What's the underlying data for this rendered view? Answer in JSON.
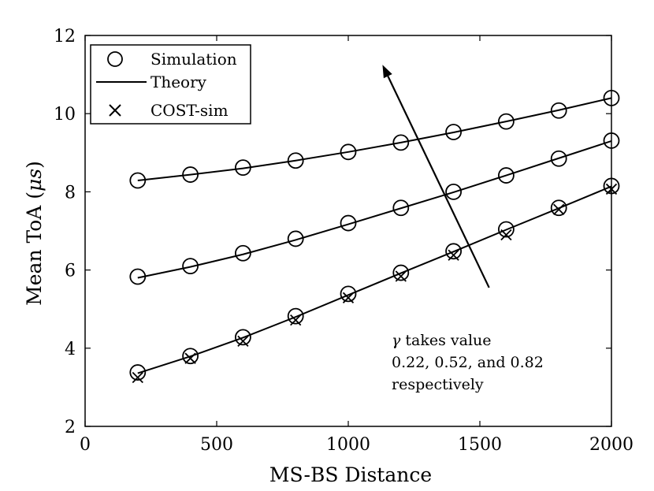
{
  "chart_data": {
    "type": "line",
    "xlabel": "MS-BS Distance",
    "ylabel": "Mean ToA (",
    "ylabel_unit": "μs",
    "ylabel_close": ")",
    "xlim": [
      0,
      2000
    ],
    "ylim": [
      2,
      12
    ],
    "xticks": [
      0,
      500,
      1000,
      1500,
      2000
    ],
    "yticks": [
      2,
      4,
      6,
      8,
      10,
      12
    ],
    "grid": false,
    "legend_position": "top-left",
    "legend": {
      "simulation": "Simulation",
      "theory": "Theory",
      "cost": "COST-sim"
    },
    "x": [
      200,
      400,
      600,
      800,
      1000,
      1200,
      1400,
      1600,
      1800,
      2000
    ],
    "series": [
      {
        "name": "γ = 0.82",
        "theory": [
          8.29,
          8.44,
          8.6,
          8.8,
          9.02,
          9.26,
          9.52,
          9.8,
          10.09,
          10.4
        ],
        "simulation": [
          8.29,
          8.44,
          8.62,
          8.8,
          9.02,
          9.26,
          9.53,
          9.8,
          10.08,
          10.4
        ],
        "cost_sim": []
      },
      {
        "name": "γ = 0.52",
        "theory": [
          5.8,
          6.08,
          6.4,
          6.77,
          7.17,
          7.58,
          7.99,
          8.42,
          8.86,
          9.3
        ],
        "simulation": [
          5.83,
          6.1,
          6.43,
          6.8,
          7.2,
          7.59,
          8.0,
          8.42,
          8.85,
          9.31
        ],
        "cost_sim": []
      },
      {
        "name": "γ = 0.22",
        "theory": [
          3.36,
          3.79,
          4.27,
          4.8,
          5.36,
          5.92,
          6.47,
          7.03,
          7.58,
          8.14
        ],
        "simulation": [
          3.38,
          3.8,
          4.28,
          4.82,
          5.39,
          5.93,
          6.48,
          7.04,
          7.59,
          8.15
        ],
        "cost_sim": [
          3.25,
          3.74,
          4.18,
          4.72,
          5.29,
          5.84,
          6.38,
          6.9,
          7.55,
          8.07
        ]
      }
    ],
    "annotation": {
      "symbol": "γ",
      "line1": " takes value",
      "line2": "0.22, 0.52, and 0.82",
      "line3": "respectively",
      "arrow_from": [
        1535,
        5.55
      ],
      "arrow_to": [
        1130,
        11.25
      ]
    }
  }
}
